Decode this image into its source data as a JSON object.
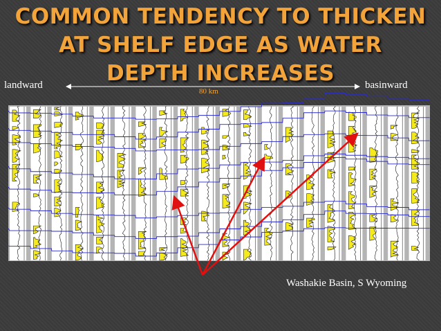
{
  "slide": {
    "title": "COMMON TENDENCY TO THICKEN AT SHELF EDGE AS WATER DEPTH INCREASES",
    "left_label": "landward",
    "right_label": "basinward",
    "scale_label": "80 km",
    "caption": "Washakie Basin, S Wyoming"
  }
}
